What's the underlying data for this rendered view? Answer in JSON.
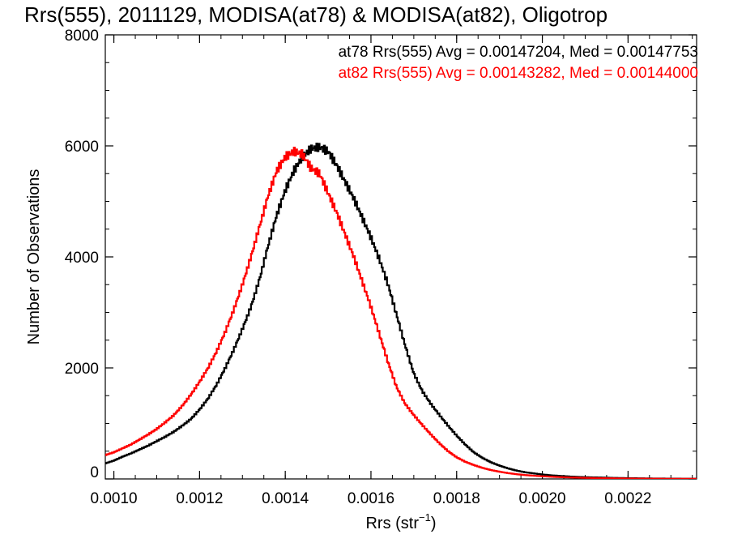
{
  "chart_data": {
    "type": "line",
    "title": "Rrs(555), 2011129, MODISA(at78) & MODISA(at82), Oligotrop",
    "xlabel": "Rrs (str",
    "xlabel_exp": "−1",
    "xlabel_close": ")",
    "ylabel": "Number of Observations",
    "xlim": [
      0.00098,
      0.00236
    ],
    "ylim": [
      0,
      8000
    ],
    "x_ticks": [
      "0.0010",
      "0.0012",
      "0.0014",
      "0.0016",
      "0.0018",
      "0.0020",
      "0.0022"
    ],
    "x_tick_values": [
      0.001,
      0.0012,
      0.0014,
      0.0016,
      0.0018,
      0.002,
      0.0022
    ],
    "y_ticks": [
      "0",
      "2000",
      "4000",
      "6000",
      "8000"
    ],
    "y_tick_values": [
      0,
      2000,
      4000,
      6000,
      8000
    ],
    "step_style": "histogram",
    "series": [
      {
        "name": "at78",
        "color": "#000000",
        "annotation": "at78 Rrs(555) Avg = 0.00147204, Med = 0.00147753",
        "x": [
          0.00098,
          0.001,
          0.00102,
          0.00104,
          0.00106,
          0.00108,
          0.0011,
          0.00112,
          0.00114,
          0.00116,
          0.00118,
          0.0012,
          0.00122,
          0.00124,
          0.00126,
          0.00128,
          0.0013,
          0.00132,
          0.00134,
          0.00136,
          0.00138,
          0.0014,
          0.00142,
          0.00144,
          0.00146,
          0.00148,
          0.0015,
          0.00152,
          0.00154,
          0.00156,
          0.00158,
          0.0016,
          0.00162,
          0.00164,
          0.00166,
          0.00168,
          0.0017,
          0.00172,
          0.00174,
          0.00176,
          0.00178,
          0.0018,
          0.00182,
          0.00184,
          0.00186,
          0.00188,
          0.0019,
          0.00192,
          0.00194,
          0.00196,
          0.00198,
          0.002,
          0.00202,
          0.00204,
          0.00206,
          0.00208,
          0.0021,
          0.00212,
          0.00214,
          0.00216,
          0.00218,
          0.0022,
          0.00222,
          0.00224,
          0.00226,
          0.00228,
          0.0023,
          0.00232,
          0.00234,
          0.00236
        ],
        "y": [
          280,
          330,
          400,
          460,
          530,
          600,
          680,
          760,
          850,
          960,
          1080,
          1250,
          1450,
          1700,
          2000,
          2330,
          2700,
          3100,
          3600,
          4200,
          4750,
          5200,
          5550,
          5800,
          5950,
          5980,
          5900,
          5650,
          5350,
          5050,
          4700,
          4350,
          3950,
          3500,
          2950,
          2400,
          1900,
          1580,
          1350,
          1150,
          960,
          780,
          620,
          480,
          380,
          300,
          240,
          190,
          150,
          120,
          100,
          80,
          65,
          55,
          45,
          38,
          32,
          28,
          24,
          20,
          17,
          14,
          12,
          10,
          8,
          7,
          6,
          5,
          4,
          3
        ]
      },
      {
        "name": "at82",
        "color": "#ff0000",
        "annotation": "at82 Rrs(555) Avg = 0.00143282, Med = 0.00144000",
        "x": [
          0.00098,
          0.001,
          0.00102,
          0.00104,
          0.00106,
          0.00108,
          0.0011,
          0.00112,
          0.00114,
          0.00116,
          0.00118,
          0.0012,
          0.00122,
          0.00124,
          0.00126,
          0.00128,
          0.0013,
          0.00132,
          0.00134,
          0.00136,
          0.00138,
          0.0014,
          0.00142,
          0.00144,
          0.00146,
          0.00148,
          0.0015,
          0.00152,
          0.00154,
          0.00156,
          0.00158,
          0.0016,
          0.00162,
          0.00164,
          0.00166,
          0.00168,
          0.0017,
          0.00172,
          0.00174,
          0.00176,
          0.00178,
          0.0018,
          0.00182,
          0.00184,
          0.00186,
          0.00188,
          0.0019,
          0.00192,
          0.00194,
          0.00196,
          0.00198,
          0.002,
          0.00202,
          0.00204,
          0.00206,
          0.00208,
          0.0021,
          0.00212,
          0.00214,
          0.00216,
          0.00218,
          0.0022,
          0.00222,
          0.00224,
          0.00226,
          0.00228,
          0.0023,
          0.00232,
          0.00234,
          0.00236
        ],
        "y": [
          430,
          480,
          550,
          620,
          710,
          800,
          900,
          1020,
          1150,
          1320,
          1520,
          1750,
          2000,
          2300,
          2650,
          3050,
          3500,
          4000,
          4550,
          5100,
          5550,
          5800,
          5900,
          5850,
          5600,
          5500,
          5150,
          4800,
          4400,
          4000,
          3550,
          3100,
          2600,
          2100,
          1650,
          1350,
          1150,
          970,
          800,
          640,
          500,
          390,
          310,
          250,
          200,
          160,
          130,
          105,
          85,
          70,
          58,
          48,
          40,
          33,
          28,
          23,
          19,
          16,
          13,
          11,
          9,
          8,
          6,
          5,
          4,
          3,
          3,
          2,
          2,
          1
        ]
      }
    ]
  }
}
